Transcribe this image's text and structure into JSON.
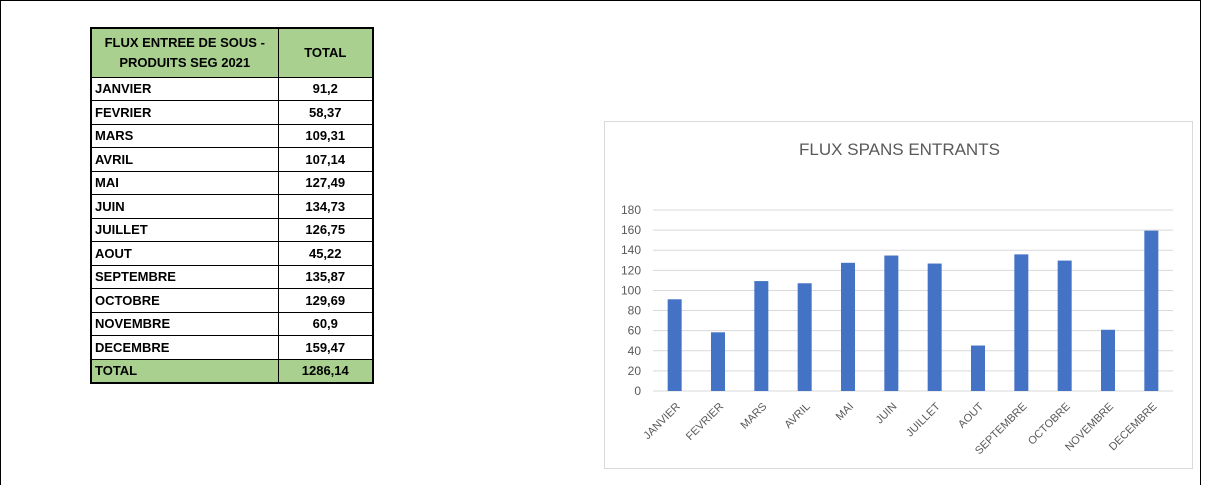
{
  "table": {
    "header_month": "FLUX ENTREE DE SOUS - PRODUITS SEG 2021",
    "header_total": "TOTAL",
    "rows": [
      {
        "month": "JANVIER",
        "value": "91,2"
      },
      {
        "month": "FEVRIER",
        "value": "58,37"
      },
      {
        "month": "MARS",
        "value": "109,31"
      },
      {
        "month": "AVRIL",
        "value": "107,14"
      },
      {
        "month": "MAI",
        "value": "127,49"
      },
      {
        "month": "JUIN",
        "value": "134,73"
      },
      {
        "month": "JUILLET",
        "value": "126,75"
      },
      {
        "month": "AOUT",
        "value": "45,22"
      },
      {
        "month": "SEPTEMBRE",
        "value": "135,87"
      },
      {
        "month": "OCTOBRE",
        "value": "129,69"
      },
      {
        "month": "NOVEMBRE",
        "value": "60,9"
      },
      {
        "month": "DECEMBRE",
        "value": "159,47"
      }
    ],
    "total_label": "TOTAL",
    "total_value": "1286,14"
  },
  "chart_data": {
    "type": "bar",
    "title": "FLUX SPANS ENTRANTS",
    "categories": [
      "JANVIER",
      "FEVRIER",
      "MARS",
      "AVRIL",
      "MAI",
      "JUIN",
      "JUILLET",
      "AOUT",
      "SEPTEMBRE",
      "OCTOBRE",
      "NOVEMBRE",
      "DECEMBRE"
    ],
    "values": [
      91.2,
      58.37,
      109.31,
      107.14,
      127.49,
      134.73,
      126.75,
      45.22,
      135.87,
      129.69,
      60.9,
      159.47
    ],
    "ylim": [
      0,
      180
    ],
    "yticks": [
      0,
      20,
      40,
      60,
      80,
      100,
      120,
      140,
      160,
      180
    ],
    "xlabel": "",
    "ylabel": "",
    "grid": true,
    "legend": "none",
    "bar_color": "#4472c4",
    "grid_color": "#d9d9d9",
    "text_color": "#595959"
  }
}
